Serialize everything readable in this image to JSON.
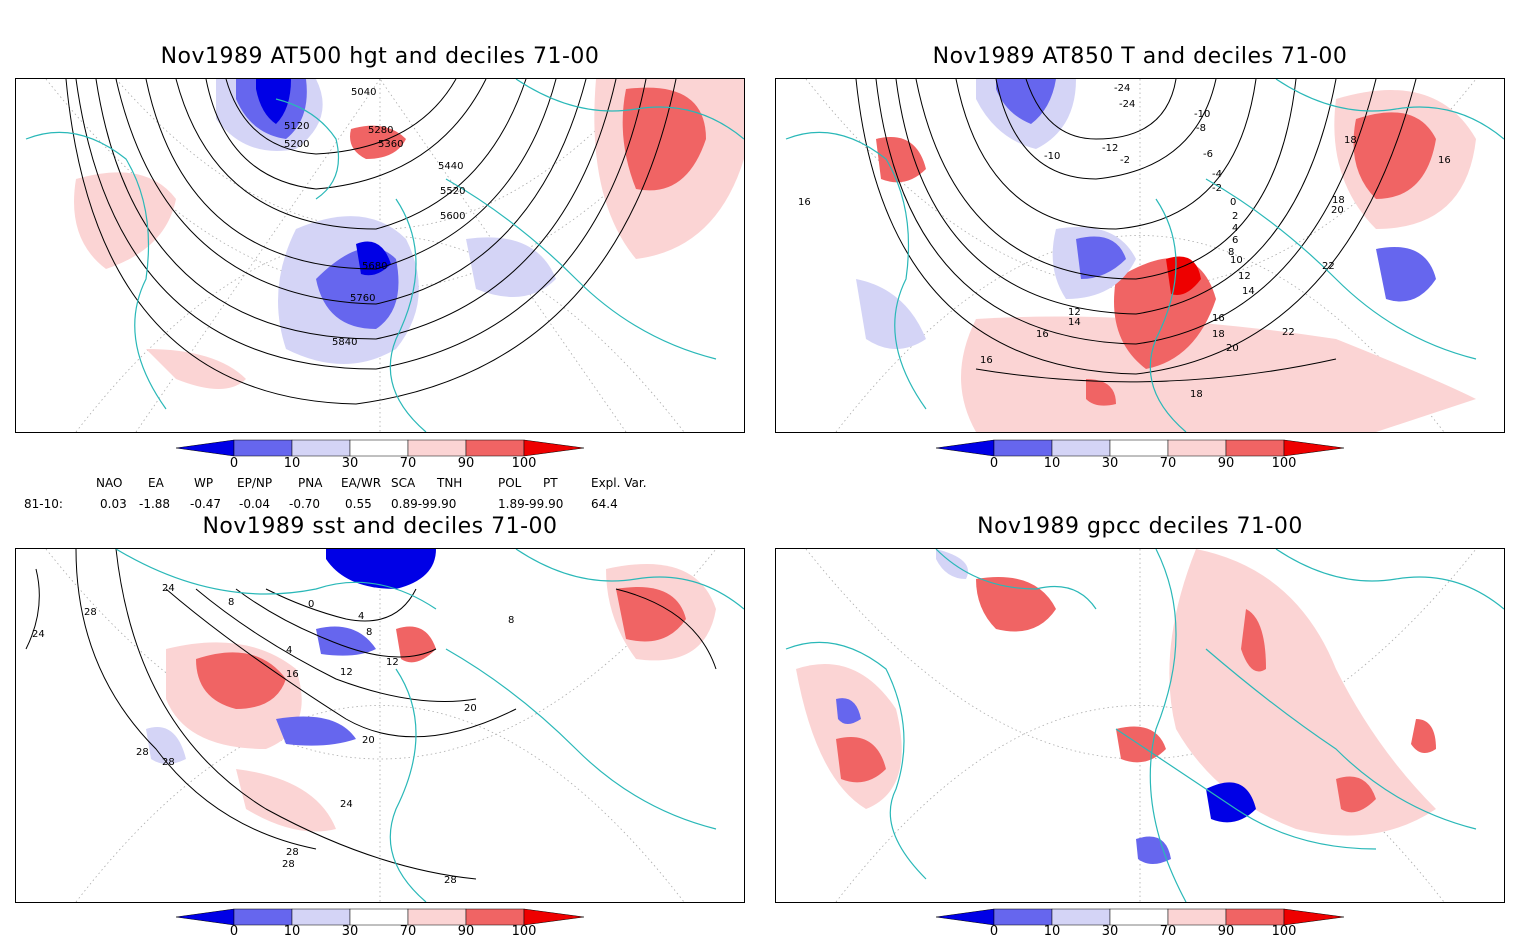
{
  "colors": {
    "coastline": "#2ab8b8",
    "contour": "#000000",
    "blue_strong": "#0000e6",
    "blue_mid": "#6666ee",
    "blue_light": "#d4d4f6",
    "red_light": "#fbd4d4",
    "red_mid": "#f06464",
    "red_strong": "#ee0000"
  },
  "colorbar": {
    "labels": [
      "0",
      "10",
      "30",
      "70",
      "90",
      "100"
    ]
  },
  "indices": {
    "headers": [
      "NAO",
      "EA",
      "WP",
      "EP/NP",
      "PNA",
      "EA/WR",
      "SCA",
      "TNH",
      "POL",
      "PT",
      "Expl. Var."
    ],
    "row_label": "81-10:",
    "values": [
      "0.03",
      "-1.88",
      "-0.47",
      "-0.04",
      "-0.70",
      "0.55",
      "0.89-99.90",
      "1.89-99.90",
      "64.4"
    ]
  },
  "panels": [
    {
      "title": "Nov1989 AT500 hgt and deciles 71-00",
      "contour_labels": [
        "5040",
        "5120",
        "5200",
        "5280",
        "5360",
        "5440",
        "5520",
        "5600",
        "5680",
        "5760",
        "5840"
      ]
    },
    {
      "title": "Nov1989 AT850 T and deciles 71-00",
      "contour_labels": [
        "-24",
        "-24",
        "-10",
        "-8",
        "-6",
        "-4",
        "-2",
        "-12",
        "-10",
        "-2",
        "0",
        "2",
        "4",
        "6",
        "8",
        "10",
        "12",
        "14",
        "16",
        "18",
        "20",
        "22",
        "22",
        "20",
        "18",
        "16",
        "18",
        "16",
        "12",
        "14",
        "16",
        "16",
        "18"
      ]
    },
    {
      "title": "Nov1989 sst and deciles 71-00",
      "contour_labels": [
        "24",
        "28",
        "24",
        "8",
        "0",
        "4",
        "4",
        "8",
        "12",
        "16",
        "12",
        "20",
        "20",
        "24",
        "28",
        "28",
        "28",
        "28",
        "28",
        "8"
      ]
    },
    {
      "title": "Nov1989 gpcc deciles 71-00",
      "contour_labels": []
    }
  ]
}
